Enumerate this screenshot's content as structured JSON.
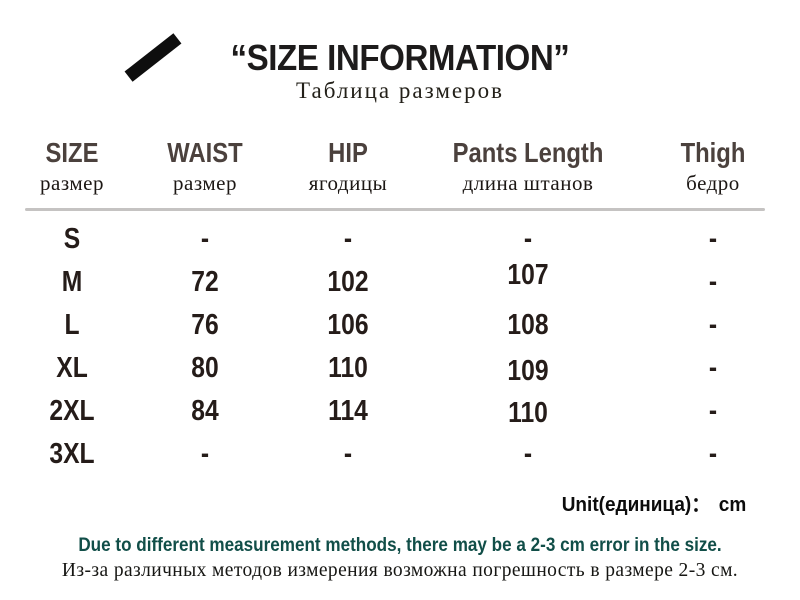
{
  "chart_data": {
    "type": "table",
    "title": "“SIZE INFORMATION”",
    "subtitle": "Таблица размеров",
    "unit_label": "Unit(единица)：",
    "unit_value": "cm",
    "columns": [
      {
        "en": "SIZE",
        "ru": "размер"
      },
      {
        "en": "WAIST",
        "ru": "размер"
      },
      {
        "en": "HIP",
        "ru": "ягодицы"
      },
      {
        "en": "Pants Length",
        "ru": "длина штанов"
      },
      {
        "en": "Thigh",
        "ru": "бедро"
      }
    ],
    "rows": [
      {
        "size": "S",
        "waist": "-",
        "hip": "-",
        "pants_length": "-",
        "thigh": "-"
      },
      {
        "size": "M",
        "waist": "72",
        "hip": "102",
        "pants_length": "107",
        "thigh": "-"
      },
      {
        "size": "L",
        "waist": "76",
        "hip": "106",
        "pants_length": "108",
        "thigh": "-"
      },
      {
        "size": "XL",
        "waist": "80",
        "hip": "110",
        "pants_length": "109",
        "thigh": "-"
      },
      {
        "size": "2XL",
        "waist": "84",
        "hip": "114",
        "pants_length": "110",
        "thigh": "-"
      },
      {
        "size": "3XL",
        "waist": "-",
        "hip": "-",
        "pants_length": "-",
        "thigh": "-"
      }
    ]
  },
  "footer": {
    "note_en": "Due to different measurement methods, there may be a 2-3 cm error in the size.",
    "note_ru": "Из-за различных методов измерения возможна погрешность в размере 2-3 см."
  },
  "colors": {
    "background": "#ffffff",
    "title": "#1d1b1b",
    "header_en": "#4b413d",
    "table_text": "#251c19",
    "divider": "#c5c3c2",
    "note_en": "#114e48",
    "note_ru": "#161613",
    "slash_mark": "#0e0e0e"
  }
}
